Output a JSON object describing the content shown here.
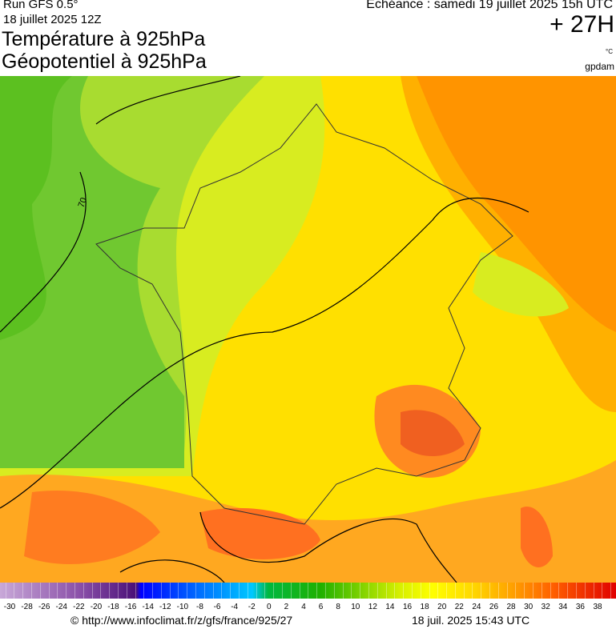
{
  "header": {
    "run": "Run GFS 0.5°",
    "date": "18 juillet 2025 12Z",
    "title_temperature": "Température à 925hPa",
    "title_geopotential": "Géopotentiel à 925hPa",
    "valid_time": "Echéance : samedi 19 juillet 2025 15h UTC",
    "lead_time": "+ 27H",
    "unit": "°C",
    "contour_unit": "gpdam"
  },
  "map": {
    "contour_label": "70"
  },
  "legend": {
    "ticks": [
      -30,
      -28,
      -26,
      -24,
      -22,
      -20,
      -18,
      -16,
      -14,
      -12,
      -10,
      -8,
      -6,
      -4,
      -2,
      0,
      2,
      4,
      6,
      8,
      10,
      12,
      14,
      16,
      18,
      20,
      22,
      24,
      26,
      28,
      30,
      32,
      34,
      36,
      38
    ]
  },
  "footer": {
    "source": "© http://www.infoclimat.fr/z/gfs/france/925/27",
    "generated": "18 juil. 2025 15:43 UTC"
  }
}
